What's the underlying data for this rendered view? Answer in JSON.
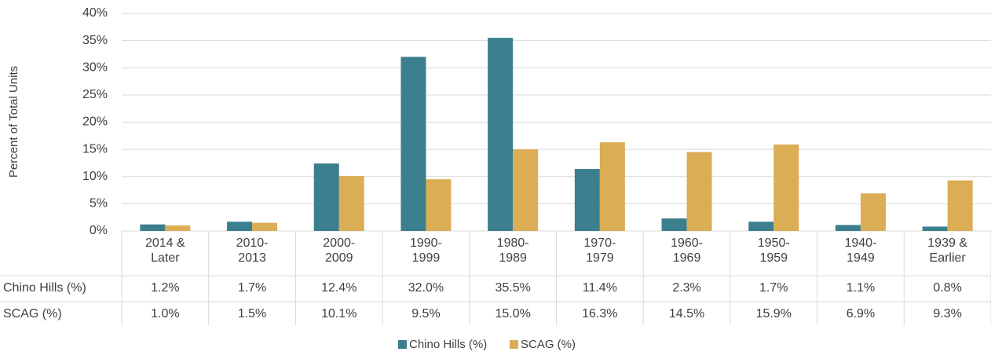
{
  "chart_data": {
    "type": "bar",
    "y_axis_label": "Percent of Total Units",
    "categories": [
      "2014 & Later",
      "2010-2013",
      "2000-2009",
      "1990-1999",
      "1980-1989",
      "1970-1979",
      "1960-1969",
      "1950-1959",
      "1940-1949",
      "1939 & Earlier"
    ],
    "series": [
      {
        "name": "Chino Hills (%)",
        "color": "#3b7f8e",
        "values": [
          1.2,
          1.7,
          12.4,
          32.0,
          35.5,
          11.4,
          2.3,
          1.7,
          1.1,
          0.8
        ],
        "value_labels": [
          "1.2%",
          "1.7%",
          "12.4%",
          "32.0%",
          "35.5%",
          "11.4%",
          "2.3%",
          "1.7%",
          "1.1%",
          "0.8%"
        ]
      },
      {
        "name": "SCAG (%)",
        "color": "#dbad55",
        "values": [
          1.0,
          1.5,
          10.1,
          9.5,
          15.0,
          16.3,
          14.5,
          15.9,
          6.9,
          9.3
        ],
        "value_labels": [
          "1.0%",
          "1.5%",
          "10.1%",
          "9.5%",
          "15.0%",
          "16.3%",
          "14.5%",
          "15.9%",
          "6.9%",
          "9.3%"
        ]
      }
    ],
    "ylim": [
      0,
      40
    ],
    "yticks": [
      {
        "value": 0,
        "label": "0%"
      },
      {
        "value": 5,
        "label": "5%"
      },
      {
        "value": 10,
        "label": "10%"
      },
      {
        "value": 15,
        "label": "15%"
      },
      {
        "value": 20,
        "label": "20%"
      },
      {
        "value": 25,
        "label": "25%"
      },
      {
        "value": 30,
        "label": "30%"
      },
      {
        "value": 35,
        "label": "35%"
      },
      {
        "value": 40,
        "label": "40%"
      }
    ],
    "grid": true
  }
}
